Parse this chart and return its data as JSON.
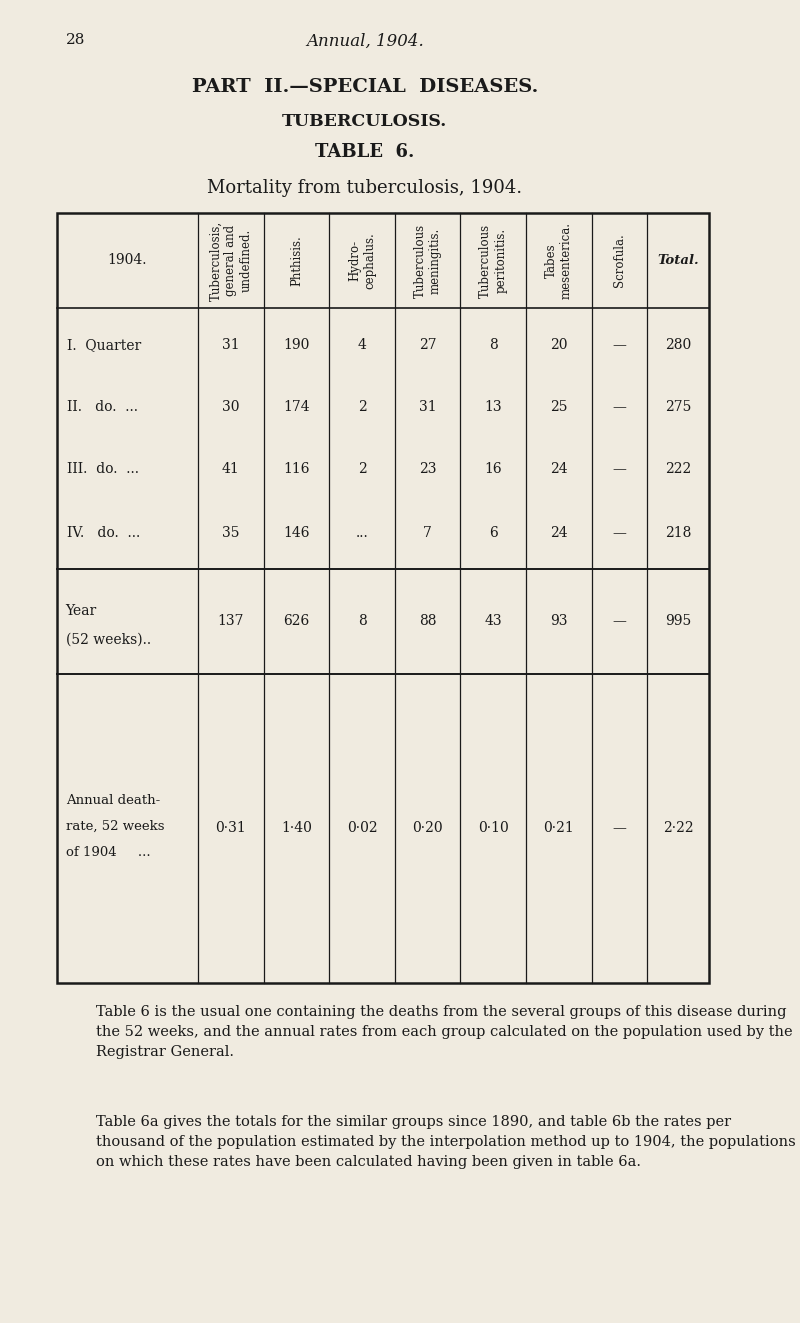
{
  "page_number": "28",
  "header_italic": "Annual, 1904.",
  "title1": "PART  II.—SPECIAL  DISEASES.",
  "title2": "TUBERCULOSIS.",
  "title3": "TABLE  6.",
  "subtitle": "Mortality from tuberculosis, 1904.",
  "bg_color": "#f0ebe0",
  "text_color": "#1a1a1a",
  "col_headers": [
    "1904.",
    "Tuberculosis,\ngeneral and\nundefined.",
    "Phthisis.",
    "Hydro-\ncephalus.",
    "Tuberculous\nmeningitis.",
    "Tuberculous\nperitonitis.",
    "Tabes\nmesenterica.",
    "Scrofula.",
    "Total."
  ],
  "rows": [
    [
      "I.  Quarter",
      "31",
      "190",
      "4",
      "27",
      "8",
      "20",
      "—",
      "280"
    ],
    [
      "II.   do.  ...",
      "30",
      "174",
      "2",
      "31",
      "13",
      "25",
      "—",
      "275"
    ],
    [
      "III.  do.  ...",
      "41",
      "116",
      "2",
      "23",
      "16",
      "24",
      "—",
      "222"
    ],
    [
      "IV.   do.  ...",
      "35",
      "146",
      "...",
      "7",
      "6",
      "24",
      "—",
      "218"
    ]
  ],
  "year_row_label": "Year\n(52 weeks)..",
  "year_row": [
    "137",
    "626",
    "8",
    "88",
    "43",
    "93",
    "—",
    "995"
  ],
  "rate_row_label": "Annual death-\nrate, 52 weeks\nof 1904     ...",
  "rate_row": [
    "0·31",
    "1·40",
    "0·02",
    "0·20",
    "0·10",
    "0·21",
    "—",
    "2·22"
  ],
  "para1": "Table 6 is the usual one containing the deaths from the several groups of this disease during the 52 weeks, and the annual rates from each group calculated on the population used by the Registrar General.",
  "para2": "Table 6a gives the totals for the similar groups since 1890, and table 6b the rates per thousand of the population estimated by the interpolation method up to 1904, the populations on which these rates have been calculated having been given in table 6a."
}
